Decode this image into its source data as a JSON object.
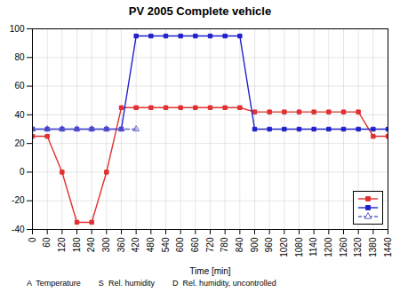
{
  "chart_data": {
    "type": "line",
    "title": "PV 2005 Complete vehicle",
    "subtitle": "A  Temperature        S  Rel. humidity        D  Rel. humidity, uncontrolled",
    "xlabel": "Time [min]",
    "xlim": [
      0,
      1440
    ],
    "ylim": [
      -40,
      100
    ],
    "xticks": [
      0,
      60,
      120,
      180,
      240,
      300,
      360,
      420,
      480,
      540,
      600,
      660,
      720,
      780,
      840,
      900,
      960,
      1020,
      1080,
      1140,
      1200,
      1260,
      1320,
      1380,
      1440
    ],
    "yticks": [
      -40,
      -20,
      0,
      20,
      40,
      60,
      80,
      100
    ],
    "grid": true,
    "legend": "lower right",
    "series": [
      {
        "color": "#e03030",
        "marker": "square",
        "line_style": "solid",
        "x": [
          0,
          60,
          120,
          180,
          240,
          300,
          360,
          420,
          480,
          540,
          600,
          660,
          720,
          780,
          840,
          900,
          960,
          1020,
          1080,
          1140,
          1200,
          1260,
          1320,
          1380,
          1440
        ],
        "values": [
          25,
          25,
          0,
          -35,
          -35,
          0,
          45,
          45,
          45,
          45,
          45,
          45,
          45,
          45,
          45,
          42,
          42,
          42,
          42,
          42,
          42,
          42,
          42,
          25,
          25
        ]
      },
      {
        "color": "#2020cc",
        "marker": "square",
        "line_style": "solid",
        "x": [
          0,
          60,
          120,
          180,
          240,
          300,
          360,
          420,
          480,
          540,
          600,
          660,
          720,
          780,
          840,
          900,
          960,
          1020,
          1080,
          1140,
          1200,
          1260,
          1320,
          1380,
          1440
        ],
        "values": [
          30,
          30,
          30,
          30,
          30,
          30,
          30,
          95,
          95,
          95,
          95,
          95,
          95,
          95,
          95,
          30,
          30,
          30,
          30,
          30,
          30,
          30,
          30,
          30,
          30
        ]
      },
      {
        "color": "#6060cc",
        "marker": "triangle_open",
        "line_style": "dashed",
        "x": [
          0,
          60,
          120,
          180,
          240,
          300,
          360,
          420
        ],
        "values": [
          30,
          30,
          30,
          30,
          30,
          30,
          30,
          30
        ]
      }
    ]
  }
}
